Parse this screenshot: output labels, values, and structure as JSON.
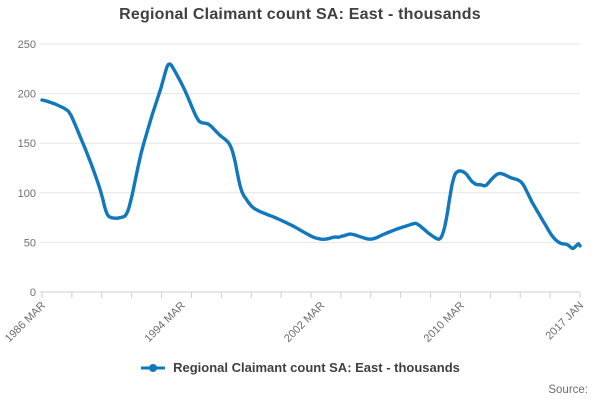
{
  "title": "Regional Claimant count SA: East - thousands",
  "legend": {
    "label": "Regional Claimant count SA: East - thousands"
  },
  "source_label": "Source:",
  "colors": {
    "line": "#1178be",
    "grid": "#e6e6e6",
    "axis": "#c5d0de",
    "title_text": "#404040",
    "muted_text": "#6e6e6e"
  },
  "chart_data": {
    "type": "line",
    "title": "Regional Claimant count SA: East - thousands",
    "series_name": "Regional Claimant count SA: East - thousands",
    "unit": "thousands",
    "x_start_label": "1986 MAR",
    "x_end_label": "2017 JAN",
    "x_total_months": 370,
    "ylim": [
      0,
      250
    ],
    "yticks": [
      0,
      50,
      100,
      150,
      200,
      250
    ],
    "xticks": [
      {
        "month": 0,
        "label": "1986 MAR"
      },
      {
        "month": 96,
        "label": "1994 MAR"
      },
      {
        "month": 192,
        "label": "2002 MAR"
      },
      {
        "month": 288,
        "label": "2010 MAR"
      },
      {
        "month": 370,
        "label": "2017 JAN"
      }
    ],
    "x_minor_tick_count": 19,
    "grid": "horizontal",
    "legend_position": "bottom",
    "points": [
      [
        0,
        193.5
      ],
      [
        3,
        192.5
      ],
      [
        6,
        191
      ],
      [
        9,
        189.5
      ],
      [
        12,
        187.5
      ],
      [
        15,
        185.5
      ],
      [
        18,
        182.5
      ],
      [
        20,
        178
      ],
      [
        22,
        171.5
      ],
      [
        24,
        164.5
      ],
      [
        26,
        157.5
      ],
      [
        28,
        150.5
      ],
      [
        30,
        143.5
      ],
      [
        32,
        136
      ],
      [
        34,
        128.5
      ],
      [
        36,
        120.5
      ],
      [
        38,
        112
      ],
      [
        40,
        103
      ],
      [
        41,
        98
      ],
      [
        42,
        92.5
      ],
      [
        43,
        86.5
      ],
      [
        44,
        81.5
      ],
      [
        45,
        78
      ],
      [
        46,
        76
      ],
      [
        48,
        74.8
      ],
      [
        50,
        74.4
      ],
      [
        52,
        74.4
      ],
      [
        54,
        75
      ],
      [
        56,
        75.8
      ],
      [
        57,
        76.5
      ],
      [
        58,
        78.5
      ],
      [
        59,
        81.5
      ],
      [
        60,
        86
      ],
      [
        62,
        98
      ],
      [
        64,
        112
      ],
      [
        66,
        126
      ],
      [
        68,
        139
      ],
      [
        70,
        150
      ],
      [
        72,
        160
      ],
      [
        74,
        170
      ],
      [
        76,
        179.5
      ],
      [
        78,
        188.5
      ],
      [
        80,
        197.5
      ],
      [
        82,
        206.5
      ],
      [
        84,
        217
      ],
      [
        85,
        222.5
      ],
      [
        86,
        227
      ],
      [
        87,
        229.5
      ],
      [
        88,
        229.8
      ],
      [
        89,
        228.5
      ],
      [
        90,
        226
      ],
      [
        92,
        221
      ],
      [
        94,
        215.5
      ],
      [
        96,
        210
      ],
      [
        98,
        204
      ],
      [
        100,
        197.5
      ],
      [
        102,
        190.5
      ],
      [
        104,
        183.5
      ],
      [
        106,
        177
      ],
      [
        107,
        174.5
      ],
      [
        108,
        172.2
      ],
      [
        110,
        170.6
      ],
      [
        112,
        170.2
      ],
      [
        114,
        169.6
      ],
      [
        116,
        167.5
      ],
      [
        118,
        164.5
      ],
      [
        120,
        161.5
      ],
      [
        122,
        158.5
      ],
      [
        124,
        156
      ],
      [
        126,
        153.8
      ],
      [
        128,
        151
      ],
      [
        129,
        148.8
      ],
      [
        130,
        145.8
      ],
      [
        131,
        141.8
      ],
      [
        132,
        136.5
      ],
      [
        133,
        130
      ],
      [
        134,
        122.5
      ],
      [
        135,
        115
      ],
      [
        136,
        108.2
      ],
      [
        137,
        103.2
      ],
      [
        138,
        99.2
      ],
      [
        139,
        96.6
      ],
      [
        140,
        94.6
      ],
      [
        142,
        90.2
      ],
      [
        144,
        86.6
      ],
      [
        146,
        84.2
      ],
      [
        148,
        82.6
      ],
      [
        150,
        81
      ],
      [
        152,
        79.8
      ],
      [
        155,
        78
      ],
      [
        158,
        76.4
      ],
      [
        161,
        74.6
      ],
      [
        164,
        72.6
      ],
      [
        167,
        70.6
      ],
      [
        170,
        68.4
      ],
      [
        173,
        66.2
      ],
      [
        176,
        63.8
      ],
      [
        179,
        61.2
      ],
      [
        182,
        58.8
      ],
      [
        184,
        57.2
      ],
      [
        186,
        55.6
      ],
      [
        188,
        54.5
      ],
      [
        190,
        53.8
      ],
      [
        192,
        53.2
      ],
      [
        194,
        53.1
      ],
      [
        196,
        53.5
      ],
      [
        198,
        54.1
      ],
      [
        200,
        55
      ],
      [
        202,
        55.5
      ],
      [
        204,
        55.1
      ],
      [
        206,
        56.1
      ],
      [
        208,
        56.9
      ],
      [
        210,
        57.9
      ],
      [
        212,
        58.5
      ],
      [
        214,
        58
      ],
      [
        216,
        57.2
      ],
      [
        218,
        56.1
      ],
      [
        220,
        55.1
      ],
      [
        222,
        54.2
      ],
      [
        224,
        53.4
      ],
      [
        226,
        53.2
      ],
      [
        228,
        53.7
      ],
      [
        230,
        54.6
      ],
      [
        232,
        56
      ],
      [
        234,
        57.5
      ],
      [
        236,
        58.8
      ],
      [
        238,
        60
      ],
      [
        240,
        61.1
      ],
      [
        242,
        62.3
      ],
      [
        244,
        63.4
      ],
      [
        246,
        64.4
      ],
      [
        248,
        65.4
      ],
      [
        250,
        66.3
      ],
      [
        252,
        67.2
      ],
      [
        254,
        68.2
      ],
      [
        256,
        69.1
      ],
      [
        257,
        69.3
      ],
      [
        258,
        68.6
      ],
      [
        260,
        66.6
      ],
      [
        262,
        64.1
      ],
      [
        264,
        61.6
      ],
      [
        266,
        59.1
      ],
      [
        268,
        57
      ],
      [
        270,
        55
      ],
      [
        271,
        54.1
      ],
      [
        272,
        53.4
      ],
      [
        273,
        53.1
      ],
      [
        274,
        54.1
      ],
      [
        275,
        56.6
      ],
      [
        276,
        60.6
      ],
      [
        277,
        66.1
      ],
      [
        278,
        73.1
      ],
      [
        279,
        81.6
      ],
      [
        280,
        91.1
      ],
      [
        281,
        100.1
      ],
      [
        282,
        108.1
      ],
      [
        283,
        114.1
      ],
      [
        284,
        118.6
      ],
      [
        285,
        120.6
      ],
      [
        286,
        121.6
      ],
      [
        287,
        122.1
      ],
      [
        288,
        122
      ],
      [
        289,
        121.6
      ],
      [
        290,
        121
      ],
      [
        291,
        120
      ],
      [
        292,
        118.6
      ],
      [
        293,
        116.6
      ],
      [
        294,
        114.6
      ],
      [
        295,
        112.6
      ],
      [
        296,
        111
      ],
      [
        297,
        109.9
      ],
      [
        298,
        108.9
      ],
      [
        299,
        108.3
      ],
      [
        300,
        108.1
      ],
      [
        301,
        108.3
      ],
      [
        302,
        108
      ],
      [
        303,
        107.6
      ],
      [
        304,
        107.1
      ],
      [
        305,
        107.3
      ],
      [
        306,
        108.3
      ],
      [
        307,
        109.9
      ],
      [
        308,
        111.6
      ],
      [
        309,
        113.3
      ],
      [
        310,
        114.9
      ],
      [
        311,
        116.3
      ],
      [
        312,
        117.6
      ],
      [
        313,
        118.6
      ],
      [
        314,
        119.3
      ],
      [
        315,
        119.6
      ],
      [
        316,
        119.4
      ],
      [
        317,
        118.9
      ],
      [
        318,
        118.3
      ],
      [
        319,
        117.6
      ],
      [
        320,
        116.9
      ],
      [
        321,
        116.1
      ],
      [
        322,
        115.4
      ],
      [
        323,
        114.9
      ],
      [
        324,
        114.4
      ],
      [
        325,
        114.1
      ],
      [
        326,
        113.6
      ],
      [
        327,
        113.1
      ],
      [
        328,
        112.4
      ],
      [
        329,
        111.4
      ],
      [
        330,
        110.1
      ],
      [
        331,
        108.1
      ],
      [
        332,
        105.6
      ],
      [
        333,
        102.6
      ],
      [
        334,
        99.6
      ],
      [
        335,
        96.6
      ],
      [
        336,
        93.6
      ],
      [
        337,
        90.6
      ],
      [
        338,
        88.1
      ],
      [
        339,
        85.6
      ],
      [
        340,
        83.1
      ],
      [
        341,
        80.6
      ],
      [
        342,
        78.1
      ],
      [
        343,
        75.6
      ],
      [
        344,
        73.1
      ],
      [
        345,
        70.6
      ],
      [
        346,
        68.1
      ],
      [
        347,
        65.6
      ],
      [
        348,
        63.1
      ],
      [
        349,
        60.6
      ],
      [
        350,
        58.3
      ],
      [
        351,
        56.3
      ],
      [
        352,
        54.5
      ],
      [
        353,
        52.9
      ],
      [
        354,
        51.6
      ],
      [
        355,
        50.5
      ],
      [
        356,
        49.6
      ],
      [
        357,
        49
      ],
      [
        358,
        48.6
      ],
      [
        359,
        48.4
      ],
      [
        360,
        48.3
      ],
      [
        361,
        47.9
      ],
      [
        362,
        47.1
      ],
      [
        363,
        45.9
      ],
      [
        364,
        44.6
      ],
      [
        365,
        43.9
      ],
      [
        366,
        44.6
      ],
      [
        367,
        46.1
      ],
      [
        368,
        47.6
      ],
      [
        369,
        48.6
      ],
      [
        370,
        46.6
      ]
    ]
  }
}
